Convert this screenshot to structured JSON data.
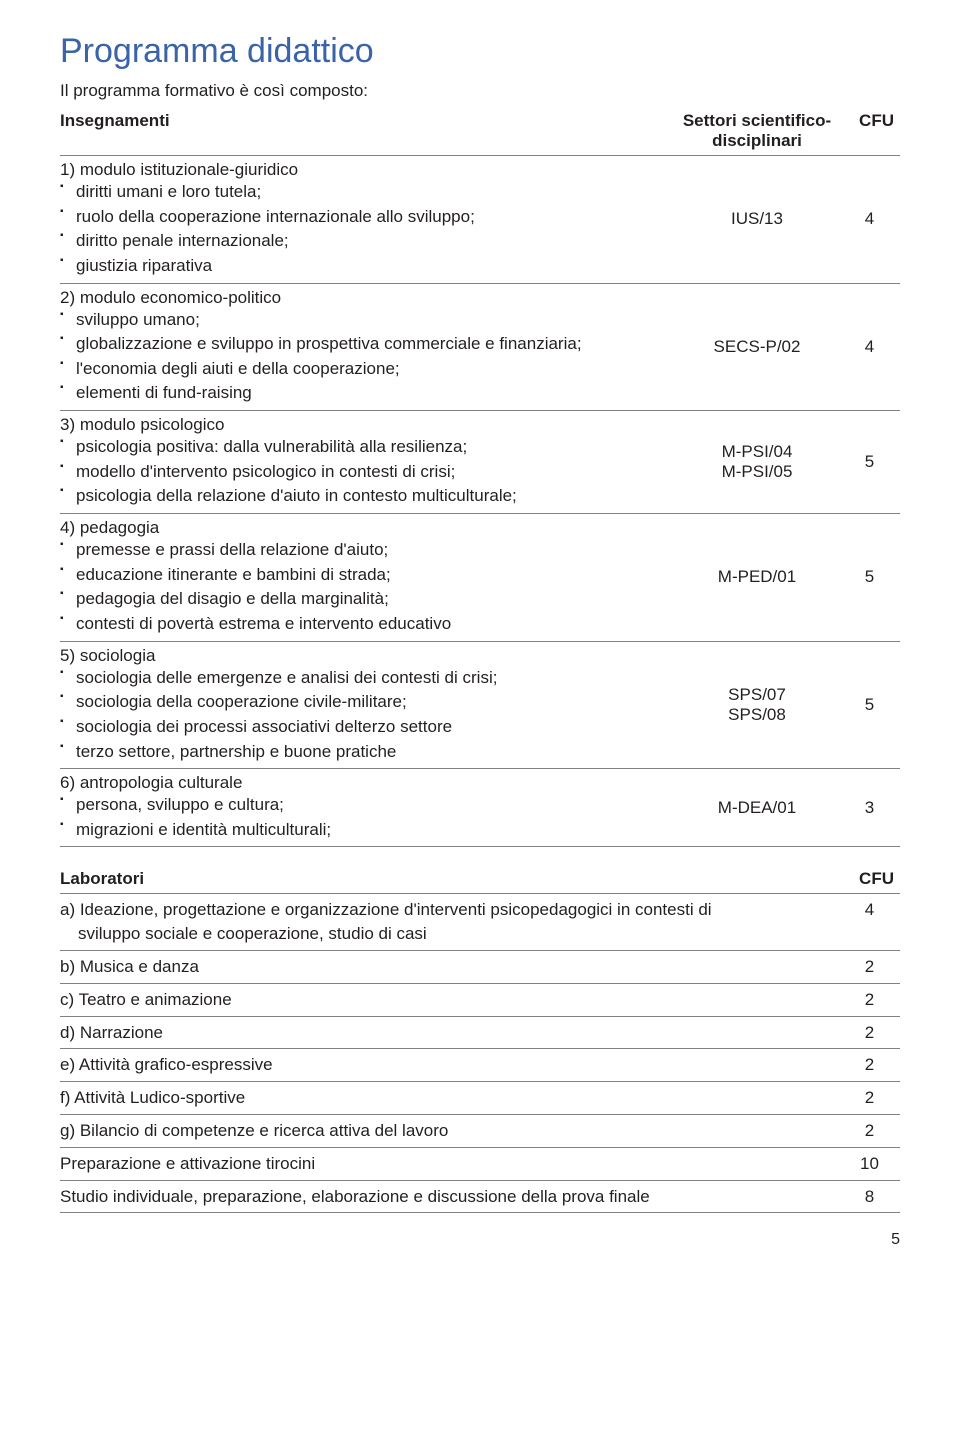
{
  "title": "Programma didattico",
  "intro": "Il programma formativo è così composto:",
  "table1": {
    "headers": {
      "col1": "Insegnamenti",
      "col2": "Settori scientifico-\ndisciplinari",
      "col3": "CFU"
    },
    "rows": [
      {
        "module": "1) modulo istituzionale-giuridico",
        "items": [
          "diritti umani e loro tutela;",
          "ruolo della cooperazione internazionale allo sviluppo;",
          "diritto penale internazionale;",
          "giustizia riparativa"
        ],
        "ssd": "IUS/13",
        "cfu": "4"
      },
      {
        "module": "2) modulo economico-politico",
        "items": [
          "sviluppo umano;",
          "globalizzazione e sviluppo in prospettiva commerciale e finanziaria;",
          "l'economia degli aiuti e della cooperazione;",
          "elementi di fund-raising"
        ],
        "ssd": "SECS-P/02",
        "cfu": "4"
      },
      {
        "module": "3) modulo psicologico",
        "items": [
          "psicologia positiva: dalla vulnerabilità alla resilienza;",
          "modello d'intervento psicologico in contesti di crisi;",
          "psicologia della relazione d'aiuto in contesto multiculturale;"
        ],
        "ssd": "M-PSI/04\nM-PSI/05",
        "cfu": "5"
      },
      {
        "module": "4) pedagogia",
        "items": [
          "premesse e prassi della relazione d'aiuto;",
          "educazione itinerante e bambini di strada;",
          "pedagogia del disagio e della marginalità;",
          "contesti di povertà estrema e intervento educativo"
        ],
        "ssd": "M-PED/01",
        "cfu": "5"
      },
      {
        "module": "5) sociologia",
        "items": [
          "sociologia delle emergenze e analisi dei contesti di crisi;",
          "sociologia della cooperazione civile-militare;",
          "sociologia dei processi associativi delterzo settore",
          "terzo settore, partnership e buone pratiche"
        ],
        "ssd": "SPS/07\nSPS/08",
        "cfu": "5"
      },
      {
        "module": "6) antropologia culturale",
        "items": [
          "persona, sviluppo e cultura;",
          "migrazioni e identità multiculturali;"
        ],
        "ssd": "M-DEA/01",
        "cfu": "3"
      }
    ]
  },
  "table2": {
    "headers": {
      "col1": "Laboratori",
      "col2": "CFU"
    },
    "rows": [
      {
        "label_line1": "a) Ideazione, progettazione e organizzazione d'interventi psicopedagogici in contesti di",
        "label_line2": "sviluppo sociale e cooperazione, studio di casi",
        "cfu": "4"
      },
      {
        "label_line1": "b) Musica e danza",
        "cfu": "2"
      },
      {
        "label_line1": "c) Teatro e animazione",
        "cfu": "2"
      },
      {
        "label_line1": "d) Narrazione",
        "cfu": "2"
      },
      {
        "label_line1": "e) Attività grafico-espressive",
        "cfu": "2"
      },
      {
        "label_line1": "f) Attività Ludico-sportive",
        "cfu": "2"
      },
      {
        "label_line1": "g) Bilancio di competenze e ricerca attiva del lavoro",
        "cfu": "2"
      },
      {
        "label_line1": "Preparazione e attivazione tirocini",
        "cfu": "10"
      },
      {
        "label_line1": "Studio individuale, preparazione, elaborazione e discussione della prova finale",
        "cfu": "8"
      }
    ]
  },
  "page_number": "5",
  "colors": {
    "heading": "#3a63a8",
    "text": "#231f20",
    "rule": "#808285",
    "background": "#ffffff"
  }
}
